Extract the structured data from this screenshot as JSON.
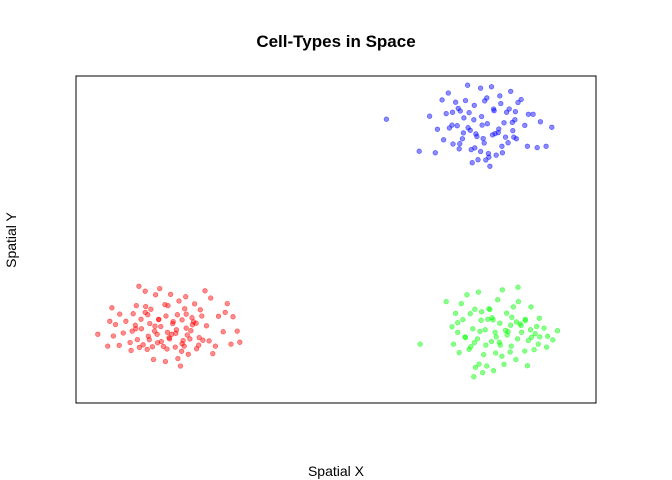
{
  "chart_data": {
    "type": "scatter",
    "title": "Cell-Types in Space",
    "xlabel": "Spatial X",
    "ylabel": "Spatial Y",
    "xlim": [
      0,
      100
    ],
    "ylim": [
      0,
      100
    ],
    "axes_ticks": false,
    "grid": false,
    "legend": false,
    "marker_opacity": 0.45,
    "series": [
      {
        "color": "#ff0000",
        "x": [
          4.2,
          6.5,
          6.1,
          6.9,
          7.2,
          7.6,
          8.4,
          8.3,
          9.1,
          9.6,
          10.4,
          10.8,
          11.0,
          10.6,
          11.4,
          11.8,
          11.6,
          12.2,
          12.6,
          12.5,
          13.3,
          13.7,
          13.3,
          13.9,
          14.2,
          14.7,
          14.4,
          15.1,
          15.3,
          15.7,
          15.9,
          16.1,
          15.2,
          16.8,
          17.1,
          17.6,
          17.3,
          17.2,
          18.0,
          18.2,
          18.6,
          17.7,
          19.1,
          19.5,
          19.3,
          19.8,
          20.1,
          20.4,
          20.6,
          20.9,
          21.2,
          21.6,
          21.1,
          21.9,
          22.3,
          22.1,
          22.8,
          23.1,
          23.7,
          23.6,
          24.2,
          24.8,
          25.1,
          25.6,
          25.9,
          26.8,
          27.4,
          28.3,
          29.1,
          29.8,
          30.2,
          31.0,
          31.5,
          12.1,
          13.4,
          16.4,
          17.5,
          18.7,
          20.3,
          21.4,
          22.6,
          23.9,
          19.6,
          15.6,
          14.1,
          12.9,
          18.4,
          16.3,
          20.8,
          22.4,
          24.4,
          13.8,
          11.5,
          17.9,
          26.3,
          28.7,
          20.4,
          15.9,
          21.2,
          19.2,
          14.9,
          23.2
        ],
        "y": [
          21.0,
          25.0,
          17.4,
          29.1,
          20.5,
          24.0,
          27.2,
          17.6,
          21.4,
          25.0,
          18.5,
          22.0,
          27.3,
          16.1,
          23.8,
          19.4,
          29.8,
          17.0,
          22.7,
          25.6,
          34.2,
          16.4,
          27.7,
          20.4,
          24.3,
          17.2,
          28.7,
          22.0,
          33.1,
          18.4,
          25.6,
          35.0,
          23.5,
          17.3,
          30.1,
          21.6,
          26.6,
          12.7,
          19.6,
          33.2,
          24.3,
          29.8,
          17.1,
          27.0,
          22.4,
          31.2,
          11.3,
          25.4,
          19.1,
          28.8,
          22.9,
          14.9,
          32.5,
          19.6,
          26.1,
          22.1,
          30.3,
          24.4,
          20.0,
          17.7,
          26.6,
          34.3,
          23.6,
          19.0,
          32.1,
          17.4,
          26.5,
          21.8,
          30.4,
          18.0,
          26.4,
          22.0,
          18.6,
          35.7,
          29.5,
          18.8,
          16.5,
          24.9,
          15.8,
          20.8,
          24.8,
          28.5,
          13.6,
          21.0,
          19.4,
          17.8,
          21.0,
          23.4,
          17.4,
          23.9,
          19.2,
          27.0,
          22.7,
          20.0,
          15.1,
          27.7,
          18.1,
          25.5,
          27.2,
          21.3,
          13.3,
          16.6
        ],
        "name": ""
      },
      {
        "color": "#00ff00",
        "x": [
          66.2,
          71.2,
          72.3,
          72.6,
          73.0,
          73.4,
          73.7,
          74.4,
          74.1,
          74.8,
          75.2,
          75.9,
          76.3,
          76.7,
          76.5,
          77.2,
          77.4,
          77.9,
          78.4,
          78.0,
          78.7,
          79.0,
          79.6,
          79.9,
          80.2,
          80.6,
          80.3,
          81.1,
          81.6,
          81.5,
          82.0,
          82.3,
          82.8,
          83.1,
          83.7,
          83.6,
          84.1,
          84.6,
          85.0,
          85.4,
          85.7,
          86.3,
          86.4,
          87.0,
          87.5,
          87.4,
          88.1,
          88.6,
          89.2,
          89.1,
          90.0,
          90.7,
          91.7,
          92.6,
          73.4,
          74.9,
          75.6,
          77.7,
          78.8,
          80.8,
          82.6,
          84.9,
          86.4,
          88.3,
          79.4,
          81.4,
          83.8,
          76.6,
          85.6,
          87.6,
          90.5,
          78.2,
          81.9,
          84.7,
          80.7,
          77.5,
          82.9,
          75.8,
          79.2,
          83.5,
          86.8,
          88.9,
          76.8,
          80.0,
          85.1
        ],
        "y": [
          18.0,
          31.0,
          23.3,
          18.0,
          27.4,
          21.6,
          15.4,
          25.5,
          30.4,
          20.2,
          33.1,
          17.2,
          22.7,
          28.7,
          8.0,
          19.6,
          33.9,
          25.3,
          14.8,
          27.9,
          22.4,
          11.3,
          28.6,
          18.8,
          25.4,
          21.6,
          9.9,
          31.6,
          17.7,
          24.4,
          34.6,
          11.8,
          27.5,
          21.8,
          17.4,
          23.8,
          29.4,
          13.3,
          35.4,
          24.2,
          21.6,
          15.9,
          25.6,
          19.1,
          29.4,
          22.4,
          16.3,
          23.4,
          20.2,
          25.9,
          22.9,
          20.4,
          19.3,
          22.1,
          24.6,
          20.0,
          16.4,
          21.9,
          17.7,
          20.2,
          22.2,
          19.6,
          25.2,
          21.2,
          28.8,
          18.6,
          26.2,
          18.4,
          23.7,
          20.1,
          17.1,
          9.3,
          14.3,
          24.8,
          15.3,
          11.9,
          20.8,
          27.3,
          25.6,
          15.6,
          11.4,
          18.0,
          10.9,
          26.1,
          31.0
        ],
        "name": ""
      },
      {
        "color": "#0000ff",
        "x": [
          59.7,
          66.0,
          68.0,
          69.1,
          69.5,
          70.4,
          70.7,
          71.2,
          71.6,
          71.8,
          72.5,
          72.4,
          73.0,
          73.3,
          73.7,
          73.9,
          74.3,
          74.6,
          74.9,
          75.4,
          75.3,
          76.0,
          76.5,
          76.6,
          76.9,
          77.3,
          77.8,
          78.0,
          78.6,
          78.3,
          79.1,
          79.3,
          79.9,
          80.1,
          80.4,
          80.8,
          81.3,
          81.5,
          81.9,
          82.3,
          82.8,
          83.1,
          83.6,
          84.0,
          84.5,
          84.7,
          85.6,
          86.3,
          86.8,
          87.9,
          88.7,
          89.3,
          90.4,
          91.5,
          72.3,
          73.8,
          75.8,
          77.1,
          78.5,
          79.4,
          80.6,
          82.6,
          83.9,
          84.2,
          76.2,
          78.8,
          81.2,
          74.5,
          82.0,
          85.0,
          87.0,
          79.6,
          77.8,
          80.3,
          75.6,
          83.3,
          81.7,
          78.1,
          76.7,
          79.0,
          73.5,
          84.4
        ],
        "y": [
          86.8,
          77.0,
          87.7,
          76.5,
          83.7,
          92.7,
          80.5,
          88.5,
          94.8,
          84.1,
          79.2,
          88.9,
          92.0,
          84.8,
          77.7,
          89.3,
          80.8,
          87.2,
          92.5,
          84.2,
          97.2,
          77.5,
          86.6,
          91.0,
          82.3,
          74.4,
          96.3,
          87.6,
          92.4,
          80.9,
          85.4,
          76.3,
          96.7,
          82.0,
          89.4,
          75.8,
          83.8,
          93.9,
          78.5,
          85.7,
          88.9,
          79.6,
          95.3,
          83.3,
          89.1,
          80.8,
          92.8,
          84.9,
          78.5,
          88.3,
          78.1,
          86.0,
          78.5,
          84.3,
          85.0,
          79.3,
          83.4,
          81.5,
          79.5,
          75.2,
          82.4,
          81.3,
          85.8,
          81.3,
          73.5,
          74.3,
          82.7,
          82.6,
          76.5,
          91.9,
          88.3,
          72.4,
          76.9,
          89.9,
          88.8,
          89.9,
          91.6,
          85.0,
          78.0,
          93.3,
          90.1,
          86.6
        ],
        "name": ""
      }
    ]
  }
}
